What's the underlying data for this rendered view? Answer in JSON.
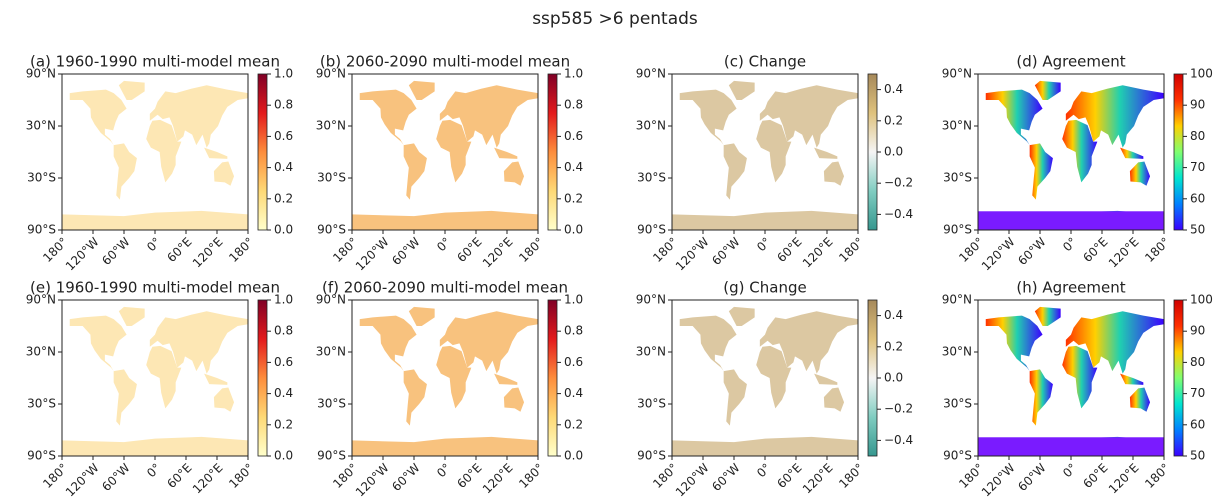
{
  "title": "ssp585 >6 pentads",
  "lat_labels": [
    "90°N",
    "30°N",
    "30°S",
    "90°S"
  ],
  "lon_labels": [
    "180°",
    "120°W",
    "60°W",
    "0°",
    "60°E",
    "120°E",
    "180°"
  ],
  "panels": [
    {
      "title": "(a) 1960-1990 multi-model mean",
      "clim": [
        0,
        1
      ],
      "colors": [
        "#ffffcc",
        "#fed976",
        "#fd8d3c",
        "#e31a1c",
        "#800026"
      ],
      "cticks": [
        {
          "value": 0,
          "label": "0.0"
        },
        0.2,
        0.4,
        0.6,
        0.8,
        {
          "value": 1,
          "label": "1.0"
        }
      ]
    },
    {
      "title": "(b) 2060-2090 multi-model mean",
      "clim": [
        0,
        1
      ],
      "colors": [
        "#ffffcc",
        "#fed976",
        "#fd8d3c",
        "#e31a1c",
        "#800026"
      ],
      "cticks": [
        {
          "value": 0,
          "label": "0.0"
        },
        0.2,
        0.4,
        0.6,
        0.8,
        {
          "value": 1,
          "label": "1.0"
        }
      ]
    },
    {
      "title": "(c) Change",
      "clim": [
        -0.5,
        0.5
      ],
      "colors": [
        "#35978f",
        "#80cdc1",
        "#f5f5f5",
        "#dfc27d",
        "#a6895a"
      ],
      "cticks": [
        {
          "value": -0.4,
          "label": "−0.4"
        },
        {
          "value": -0.2,
          "label": "−0.2"
        },
        {
          "value": 0,
          "label": "0.0"
        },
        0.2,
        0.4
      ]
    },
    {
      "title": "(d) Agreement",
      "clim": [
        50,
        100
      ],
      "colors": [
        "#3b00ff",
        "#0080ff",
        "#00e5d0",
        "#80ff70",
        "#ffd000",
        "#ff3000",
        "#d00000"
      ],
      "cticks": [
        50,
        60,
        70,
        80,
        90,
        100
      ]
    },
    {
      "title": "(e) 1960-1990 multi-model mean",
      "clim": [
        0,
        1
      ],
      "colors": [
        "#ffffcc",
        "#fed976",
        "#fd8d3c",
        "#e31a1c",
        "#800026"
      ],
      "cticks": [
        {
          "value": 0,
          "label": "0.0"
        },
        0.2,
        0.4,
        0.6,
        0.8,
        {
          "value": 1,
          "label": "1.0"
        }
      ]
    },
    {
      "title": "(f) 2060-2090 multi-model mean",
      "clim": [
        0,
        1
      ],
      "colors": [
        "#ffffcc",
        "#fed976",
        "#fd8d3c",
        "#e31a1c",
        "#800026"
      ],
      "cticks": [
        {
          "value": 0,
          "label": "0.0"
        },
        0.2,
        0.4,
        0.6,
        0.8,
        {
          "value": 1,
          "label": "1.0"
        }
      ]
    },
    {
      "title": "(g) Change",
      "clim": [
        -0.5,
        0.5
      ],
      "colors": [
        "#35978f",
        "#80cdc1",
        "#f5f5f5",
        "#dfc27d",
        "#a6895a"
      ],
      "cticks": [
        {
          "value": -0.4,
          "label": "−0.4"
        },
        {
          "value": -0.2,
          "label": "−0.2"
        },
        {
          "value": 0,
          "label": "0.0"
        },
        0.2,
        0.4
      ]
    },
    {
      "title": "(h) Agreement",
      "clim": [
        50,
        100
      ],
      "colors": [
        "#3b00ff",
        "#0080ff",
        "#00e5d0",
        "#80ff70",
        "#ffd000",
        "#ff3000",
        "#d00000"
      ],
      "cticks": [
        50,
        60,
        70,
        80,
        90,
        100
      ]
    }
  ]
}
